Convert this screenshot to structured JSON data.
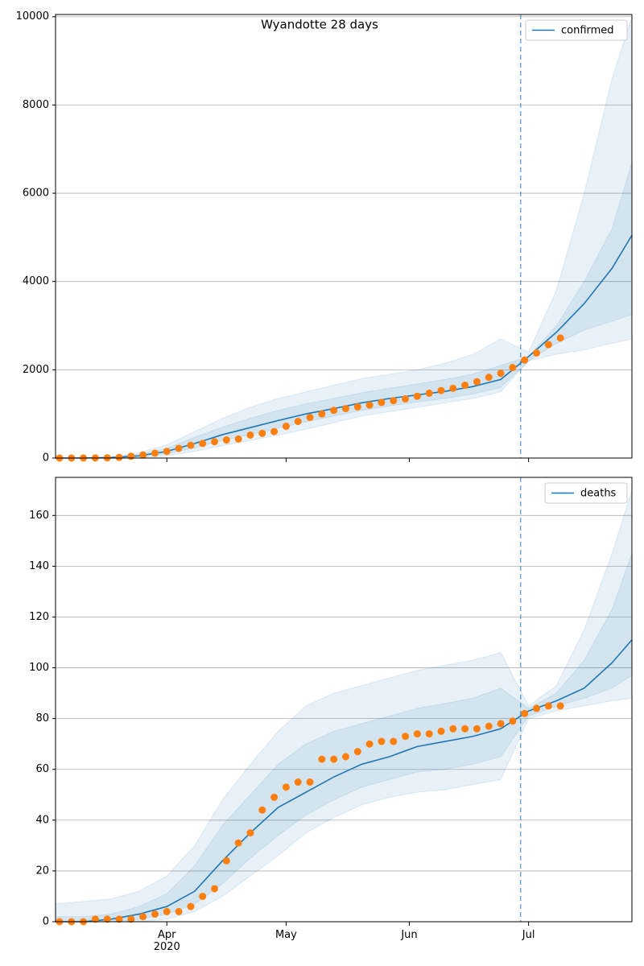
{
  "chart_data": [
    {
      "type": "line",
      "title": "Wyandotte 28 days",
      "ylim": [
        0,
        10050
      ],
      "yticks": [
        0,
        2000,
        4000,
        6000,
        8000,
        10000
      ],
      "grid": true,
      "legend": "upper right",
      "xlim": [
        "2020-03-04",
        "2020-07-27"
      ],
      "vline": "2020-06-29",
      "series": [
        {
          "name": "confirmed",
          "color": "#1f77b4",
          "x": [
            "2020-03-04",
            "2020-03-11",
            "2020-03-18",
            "2020-03-25",
            "2020-04-01",
            "2020-04-08",
            "2020-04-15",
            "2020-04-22",
            "2020-04-29",
            "2020-05-06",
            "2020-05-13",
            "2020-05-20",
            "2020-05-27",
            "2020-06-03",
            "2020-06-10",
            "2020-06-17",
            "2020-06-24",
            "2020-07-01",
            "2020-07-08",
            "2020-07-15",
            "2020-07-22",
            "2020-07-27"
          ],
          "values": [
            0,
            0,
            10,
            50,
            150,
            330,
            530,
            690,
            850,
            1000,
            1120,
            1250,
            1350,
            1430,
            1510,
            1620,
            1780,
            2300,
            2850,
            3500,
            4300,
            5050
          ]
        }
      ],
      "bands": [
        {
          "upper": [
            0,
            0,
            30,
            120,
            300,
            600,
            900,
            1150,
            1350,
            1500,
            1650,
            1800,
            1900,
            2000,
            2150,
            2350,
            2700,
            2400,
            3800,
            6000,
            8600,
            10000
          ],
          "lower": [
            0,
            0,
            0,
            10,
            50,
            150,
            280,
            400,
            520,
            650,
            800,
            950,
            1050,
            1150,
            1250,
            1350,
            1500,
            2200,
            2350,
            2450,
            2600,
            2700
          ]
        },
        {
          "upper": [
            0,
            0,
            20,
            80,
            220,
            470,
            700,
            900,
            1080,
            1230,
            1350,
            1480,
            1580,
            1680,
            1780,
            1900,
            2100,
            2300,
            3000,
            4000,
            5200,
            6700
          ],
          "lower": [
            0,
            0,
            5,
            30,
            100,
            230,
            400,
            530,
            680,
            820,
            950,
            1080,
            1180,
            1270,
            1350,
            1450,
            1600,
            2200,
            2600,
            2900,
            3100,
            3250
          ]
        }
      ],
      "observed": {
        "color": "#ff7f0e",
        "x": [
          "2020-03-05",
          "2020-03-08",
          "2020-03-11",
          "2020-03-14",
          "2020-03-17",
          "2020-03-20",
          "2020-03-23",
          "2020-03-26",
          "2020-03-29",
          "2020-04-01",
          "2020-04-04",
          "2020-04-07",
          "2020-04-10",
          "2020-04-13",
          "2020-04-16",
          "2020-04-19",
          "2020-04-22",
          "2020-04-25",
          "2020-04-28",
          "2020-05-01",
          "2020-05-04",
          "2020-05-07",
          "2020-05-10",
          "2020-05-13",
          "2020-05-16",
          "2020-05-19",
          "2020-05-22",
          "2020-05-25",
          "2020-05-28",
          "2020-05-31",
          "2020-06-03",
          "2020-06-06",
          "2020-06-09",
          "2020-06-12",
          "2020-06-15",
          "2020-06-18",
          "2020-06-21",
          "2020-06-24",
          "2020-06-27",
          "2020-06-30",
          "2020-07-03",
          "2020-07-06",
          "2020-07-09"
        ],
        "values": [
          1,
          1,
          2,
          3,
          5,
          15,
          40,
          70,
          110,
          150,
          220,
          290,
          330,
          370,
          410,
          430,
          520,
          560,
          600,
          720,
          830,
          920,
          1000,
          1080,
          1120,
          1160,
          1200,
          1260,
          1300,
          1340,
          1400,
          1470,
          1530,
          1580,
          1650,
          1730,
          1830,
          1920,
          2050,
          2220,
          2380,
          2570,
          2720
        ]
      }
    },
    {
      "type": "line",
      "ylim": [
        0,
        175
      ],
      "yticks": [
        0,
        20,
        40,
        60,
        80,
        100,
        120,
        140,
        160
      ],
      "grid": true,
      "legend": "upper right",
      "xlim": [
        "2020-03-04",
        "2020-07-27"
      ],
      "vline": "2020-06-29",
      "xticks": [
        {
          "value": "2020-04-01",
          "label": "Apr\n2020"
        },
        {
          "value": "2020-05-01",
          "label": "May"
        },
        {
          "value": "2020-06-01",
          "label": "Jun"
        },
        {
          "value": "2020-07-01",
          "label": "Jul"
        }
      ],
      "series": [
        {
          "name": "deaths",
          "color": "#1f77b4",
          "x": [
            "2020-03-04",
            "2020-03-11",
            "2020-03-18",
            "2020-03-25",
            "2020-04-01",
            "2020-04-08",
            "2020-04-15",
            "2020-04-22",
            "2020-04-29",
            "2020-05-06",
            "2020-05-13",
            "2020-05-20",
            "2020-05-27",
            "2020-06-03",
            "2020-06-10",
            "2020-06-17",
            "2020-06-24",
            "2020-07-01",
            "2020-07-08",
            "2020-07-15",
            "2020-07-22",
            "2020-07-27"
          ],
          "values": [
            0,
            0,
            1,
            3,
            6,
            12,
            24,
            35,
            45,
            51,
            57,
            62,
            65,
            69,
            71,
            73,
            76,
            83,
            87,
            92,
            102,
            111
          ]
        }
      ],
      "bands": [
        {
          "upper": [
            7,
            8,
            9,
            12,
            18,
            30,
            48,
            62,
            75,
            85,
            90,
            93,
            96,
            99,
            101,
            103,
            106,
            85,
            93,
            115,
            145,
            170
          ],
          "lower": [
            0,
            0,
            0,
            0,
            1,
            4,
            10,
            18,
            26,
            35,
            41,
            46,
            49,
            51,
            52,
            54,
            56,
            80,
            83,
            85,
            87,
            88
          ]
        },
        {
          "upper": [
            2,
            2,
            3,
            6,
            11,
            22,
            38,
            50,
            62,
            70,
            75,
            78,
            81,
            84,
            86,
            88,
            92,
            84,
            90,
            103,
            123,
            145
          ],
          "lower": [
            0,
            0,
            0,
            1,
            3,
            7,
            15,
            25,
            34,
            42,
            48,
            53,
            56,
            59,
            60,
            62,
            65,
            81,
            85,
            88,
            92,
            97
          ]
        }
      ],
      "observed": {
        "color": "#ff7f0e",
        "x": [
          "2020-03-05",
          "2020-03-08",
          "2020-03-11",
          "2020-03-14",
          "2020-03-17",
          "2020-03-20",
          "2020-03-23",
          "2020-03-26",
          "2020-03-29",
          "2020-04-01",
          "2020-04-04",
          "2020-04-07",
          "2020-04-10",
          "2020-04-13",
          "2020-04-16",
          "2020-04-19",
          "2020-04-22",
          "2020-04-25",
          "2020-04-28",
          "2020-05-01",
          "2020-05-04",
          "2020-05-07",
          "2020-05-10",
          "2020-05-13",
          "2020-05-16",
          "2020-05-19",
          "2020-05-22",
          "2020-05-25",
          "2020-05-28",
          "2020-05-31",
          "2020-06-03",
          "2020-06-06",
          "2020-06-09",
          "2020-06-12",
          "2020-06-15",
          "2020-06-18",
          "2020-06-21",
          "2020-06-24",
          "2020-06-27",
          "2020-06-30",
          "2020-07-03",
          "2020-07-06",
          "2020-07-09"
        ],
        "values": [
          0,
          0,
          0,
          1,
          1,
          1,
          1,
          2,
          3,
          4,
          4,
          6,
          10,
          13,
          24,
          31,
          35,
          44,
          49,
          53,
          55,
          55,
          64,
          64,
          65,
          67,
          70,
          71,
          71,
          73,
          74,
          74,
          75,
          76,
          76,
          76,
          77,
          78,
          79,
          82,
          84,
          85,
          85
        ]
      }
    }
  ]
}
